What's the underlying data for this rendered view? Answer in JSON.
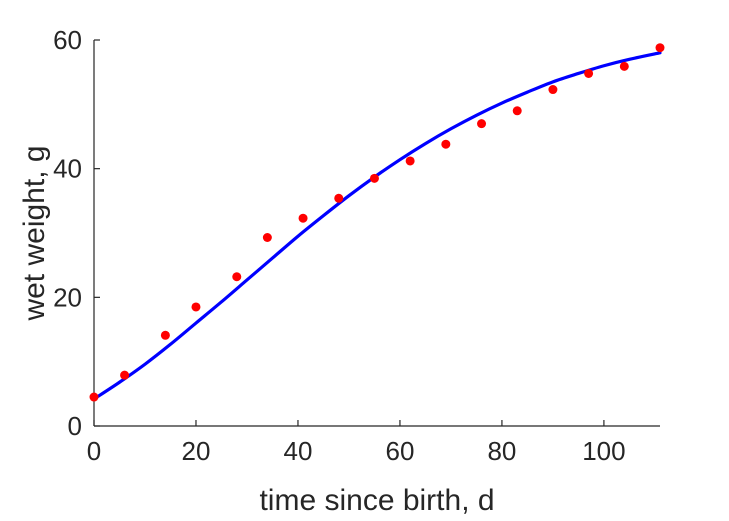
{
  "chart_data": {
    "type": "scatter",
    "xlabel": "time since birth, d",
    "ylabel": "wet weight, g",
    "xlim": [
      0,
      111
    ],
    "ylim": [
      0,
      60
    ],
    "x_ticks": [
      0,
      20,
      40,
      60,
      80,
      100
    ],
    "y_ticks": [
      0,
      20,
      40,
      60
    ],
    "grid": false,
    "series": [
      {
        "kind": "scatter",
        "color": "#ff0000",
        "x": [
          0,
          6,
          14,
          20,
          28,
          34,
          41,
          48,
          55,
          62,
          69,
          76,
          83,
          90,
          97,
          104,
          111
        ],
        "y": [
          4.5,
          7.9,
          14.1,
          18.5,
          23.2,
          29.3,
          32.3,
          35.4,
          38.5,
          41.2,
          43.8,
          47.0,
          49.0,
          52.3,
          54.8,
          55.9,
          58.8
        ]
      },
      {
        "kind": "line",
        "color": "#0000ff",
        "x": [
          0,
          5,
          10,
          15,
          20,
          25,
          30,
          35,
          40,
          45,
          50,
          55,
          60,
          65,
          70,
          75,
          80,
          85,
          90,
          95,
          100,
          105,
          111
        ],
        "y": [
          4.2,
          6.8,
          9.6,
          12.7,
          16.0,
          19.3,
          22.7,
          26.1,
          29.5,
          32.7,
          35.8,
          38.7,
          41.4,
          43.9,
          46.2,
          48.3,
          50.2,
          51.9,
          53.5,
          54.8,
          56.0,
          57.0,
          58.0
        ]
      }
    ]
  }
}
